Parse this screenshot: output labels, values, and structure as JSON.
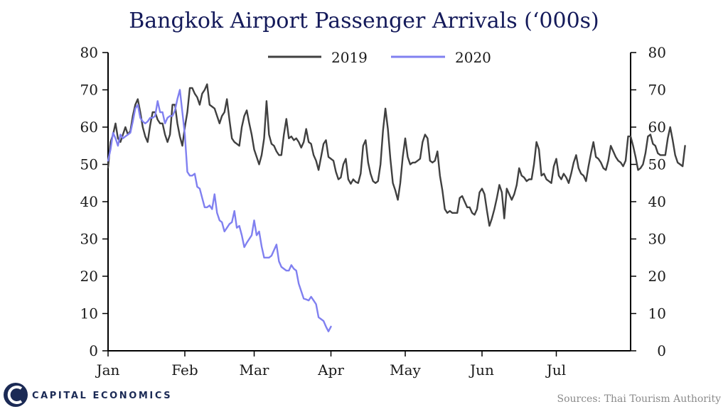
{
  "footer": {
    "brand": "CAPITAL ECONOMICS",
    "source": "Sources: Thai Tourism Authority"
  },
  "colors": {
    "series_2019": "#404040",
    "series_2020": "#8080f0",
    "title": "#141a5a",
    "axis": "#000000",
    "brand": "#1b2a55"
  },
  "chart_data": {
    "type": "line",
    "title": "Bangkok Airport Passenger Arrivals (‘000s)",
    "xlabel": "",
    "ylabel": "",
    "grid": false,
    "legend": "top-center",
    "x_unit": "day",
    "x_range": [
      "2019-01-01",
      "2019-07-31"
    ],
    "ylim": [
      0,
      80
    ],
    "y_ticks": [
      0,
      10,
      20,
      30,
      40,
      50,
      60,
      70,
      80
    ],
    "y_axis_left_and_right": true,
    "x_ticks": [
      {
        "label": "Jan",
        "date": "01-01"
      },
      {
        "label": "Feb",
        "date": "02-01"
      },
      {
        "label": "Mar",
        "date": "03-01"
      },
      {
        "label": "Apr",
        "date": "04-01"
      },
      {
        "label": "May",
        "date": "05-01"
      },
      {
        "label": "Jun",
        "date": "06-01"
      },
      {
        "label": "Jul",
        "date": "07-01"
      }
    ],
    "series": [
      {
        "name": "2019",
        "start_date": "01-01",
        "values": [
          49.2,
          56,
          58,
          61,
          57,
          56,
          58,
          60,
          58,
          59,
          63,
          66,
          67.5,
          64,
          60,
          57.5,
          56,
          60.5,
          64,
          64,
          62,
          61,
          61,
          58,
          56,
          58,
          66,
          66,
          61,
          57.5,
          55,
          60,
          64,
          70.5,
          70.5,
          69,
          68,
          66,
          69,
          70,
          71.5,
          66,
          65.5,
          65,
          63,
          61,
          63,
          64,
          67.5,
          62,
          57,
          56,
          55.5,
          55,
          60,
          63,
          64.5,
          61,
          58,
          54,
          52,
          50,
          52.5,
          57,
          67,
          58,
          55.5,
          55,
          53.5,
          52.5,
          52.5,
          58,
          62.2,
          57,
          57.5,
          56.5,
          57,
          56,
          54.5,
          56,
          59.5,
          56,
          55.5,
          52.5,
          51,
          48.5,
          52,
          55.5,
          56.5,
          52,
          51.5,
          51,
          48,
          46,
          46.5,
          50,
          51.5,
          46,
          44.8,
          46,
          45.3,
          45,
          47.5,
          55,
          56.5,
          50.5,
          47.5,
          45.5,
          45,
          45.5,
          50,
          59,
          65,
          59.5,
          51.5,
          45,
          43,
          40.5,
          45,
          52,
          57,
          52,
          50,
          50.5,
          50.5,
          51,
          51.5,
          56,
          58,
          57,
          51,
          50.5,
          51,
          53.5,
          47,
          43,
          38,
          37,
          37.5,
          37,
          37,
          37,
          41,
          41.5,
          40,
          38.5,
          38.5,
          37,
          36.5,
          38,
          42.5,
          43.5,
          42,
          37.5,
          33.5,
          35.5,
          38,
          41,
          44.5,
          42.5,
          35.5,
          43.5,
          42,
          40.5,
          42,
          44.5,
          49,
          47,
          46.5,
          45.5,
          46,
          46,
          50,
          56,
          54,
          47,
          47.5,
          46,
          45.5,
          45,
          49.5,
          51.5,
          47,
          46,
          47.5,
          46.5,
          45,
          47.5,
          50.5,
          52.5,
          49,
          47.5,
          47,
          45.5,
          49.5,
          53,
          56,
          52,
          51.5,
          50.5,
          49,
          48.5,
          51,
          55,
          53.5,
          52,
          51,
          50.5,
          49.5,
          51,
          57.5,
          57.5,
          55,
          52,
          48.5,
          49,
          50,
          53,
          57.5,
          58,
          55.5,
          55,
          53,
          52.5,
          52.5,
          52.5,
          57,
          60,
          56.5,
          52.5,
          50.5,
          50,
          49.5,
          55
        ]
      },
      {
        "name": "2020",
        "start_date": "01-01",
        "values": [
          51,
          54,
          58.5,
          57,
          55,
          58,
          57,
          57.5,
          58,
          58.5,
          61.5,
          65,
          66,
          62.5,
          61.5,
          61,
          61.5,
          62.5,
          62.5,
          63,
          67,
          64,
          64,
          61,
          62.5,
          63,
          63,
          64.5,
          67.5,
          70,
          64,
          58,
          48,
          47,
          47,
          47.5,
          44,
          43.5,
          41,
          38.5,
          38.5,
          39,
          38,
          42,
          37,
          35,
          34.5,
          32,
          33,
          34,
          34.5,
          37.5,
          33,
          33.5,
          31,
          27.8,
          29,
          30,
          31,
          35,
          31,
          32,
          28,
          25,
          25,
          25,
          25.5,
          27,
          28.5,
          24,
          22.5,
          22,
          21.5,
          21.5,
          23,
          22,
          21.5,
          18,
          16,
          14,
          13.8,
          13.5,
          14.5,
          13.5,
          12.5,
          9,
          8.5,
          8,
          6.5,
          5.2,
          6.5
        ]
      }
    ]
  }
}
